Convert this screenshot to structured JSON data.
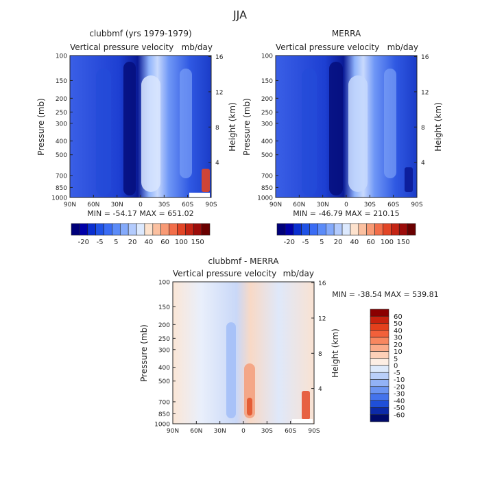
{
  "page_title": "JJA",
  "chart_data": [
    {
      "type": "heatmap",
      "title": "clubbmf (yrs 1979-1979)",
      "subtitle_left": "Vertical pressure velocity",
      "subtitle_right": "mb/day",
      "ylabel": "Pressure (mb)",
      "y2label": "Height (km)",
      "x_ticks": [
        "90N",
        "60N",
        "30N",
        "0",
        "30S",
        "60S",
        "90S"
      ],
      "y_ticks": [
        "100",
        "150",
        "200",
        "250",
        "300",
        "400",
        "500",
        "700",
        "850",
        "1000"
      ],
      "y_tick_values": [
        100,
        150,
        200,
        250,
        300,
        400,
        500,
        700,
        850,
        1000
      ],
      "y2_ticks": [
        "16",
        "12",
        "8",
        "4"
      ],
      "y2_tick_values": [
        16,
        12,
        8,
        4
      ],
      "xlim": [
        90,
        -90
      ],
      "ylim": [
        100,
        1000
      ],
      "stats": "MIN = -54.17   MAX = 651.02",
      "min": -54.17,
      "max": 651.02,
      "colorbar": {
        "labels": [
          "-20",
          "-5",
          "5",
          "20",
          "40",
          "60",
          "100",
          "150"
        ],
        "colors": [
          "#00007a",
          "#0000a8",
          "#0a2fd0",
          "#1f52e6",
          "#3a6cf4",
          "#5b8bf8",
          "#84aafb",
          "#b3cbfd",
          "#dce9fe",
          "#fde2cd",
          "#fbc0a0",
          "#f89a75",
          "#f26e4a",
          "#e24526",
          "#c42414",
          "#9c0c0a",
          "#6a0000"
        ]
      }
    },
    {
      "type": "heatmap",
      "title": "MERRA",
      "subtitle_left": "Vertical pressure velocity",
      "subtitle_right": "mb/day",
      "ylabel": "Pressure (mb)",
      "y2label": "Height (km)",
      "x_ticks": [
        "90N",
        "60N",
        "30N",
        "0",
        "30S",
        "60S",
        "90S"
      ],
      "y_ticks": [
        "100",
        "150",
        "200",
        "250",
        "300",
        "400",
        "500",
        "700",
        "850",
        "1000"
      ],
      "y_tick_values": [
        100,
        150,
        200,
        250,
        300,
        400,
        500,
        700,
        850,
        1000
      ],
      "y2_ticks": [
        "16",
        "12",
        "8",
        "4"
      ],
      "y2_tick_values": [
        16,
        12,
        8,
        4
      ],
      "xlim": [
        90,
        -90
      ],
      "ylim": [
        100,
        1000
      ],
      "stats": "MIN = -46.79   MAX = 210.15",
      "min": -46.79,
      "max": 210.15,
      "colorbar": {
        "labels": [
          "-20",
          "-5",
          "5",
          "20",
          "40",
          "60",
          "100",
          "150"
        ],
        "colors": [
          "#00007a",
          "#0000a8",
          "#0a2fd0",
          "#1f52e6",
          "#3a6cf4",
          "#5b8bf8",
          "#84aafb",
          "#b3cbfd",
          "#dce9fe",
          "#fde2cd",
          "#fbc0a0",
          "#f89a75",
          "#f26e4a",
          "#e24526",
          "#c42414",
          "#9c0c0a",
          "#6a0000"
        ]
      }
    },
    {
      "type": "heatmap",
      "title": "clubbmf - MERRA",
      "subtitle_left": "Vertical pressure velocity",
      "subtitle_right": "mb/day",
      "ylabel": "Pressure (mb)",
      "y2label": "Height (km)",
      "x_ticks": [
        "90N",
        "60N",
        "30N",
        "0",
        "30S",
        "60S",
        "90S"
      ],
      "y_ticks": [
        "100",
        "150",
        "200",
        "250",
        "300",
        "400",
        "500",
        "700",
        "850",
        "1000"
      ],
      "y_tick_values": [
        100,
        150,
        200,
        250,
        300,
        400,
        500,
        700,
        850,
        1000
      ],
      "y2_ticks": [
        "16",
        "12",
        "8",
        "4"
      ],
      "y2_tick_values": [
        16,
        12,
        8,
        4
      ],
      "xlim": [
        90,
        -90
      ],
      "ylim": [
        100,
        1000
      ],
      "stats": "MIN = -38.54   MAX = 539.81",
      "min": -38.54,
      "max": 539.81,
      "colorbar": {
        "labels": [
          "60",
          "50",
          "40",
          "30",
          "20",
          "10",
          "5",
          "0",
          "-5",
          "-10",
          "-20",
          "-30",
          "-40",
          "-50",
          "-60"
        ],
        "colors": [
          "#8b0000",
          "#c8220e",
          "#e4401c",
          "#f2603a",
          "#f8875f",
          "#fbab89",
          "#fdd0b8",
          "#fdeee4",
          "#dde9fb",
          "#b9cff9",
          "#92b2f6",
          "#6b94f2",
          "#4473ec",
          "#1f4fd8",
          "#0c2aa8",
          "#000a6a"
        ]
      }
    }
  ]
}
